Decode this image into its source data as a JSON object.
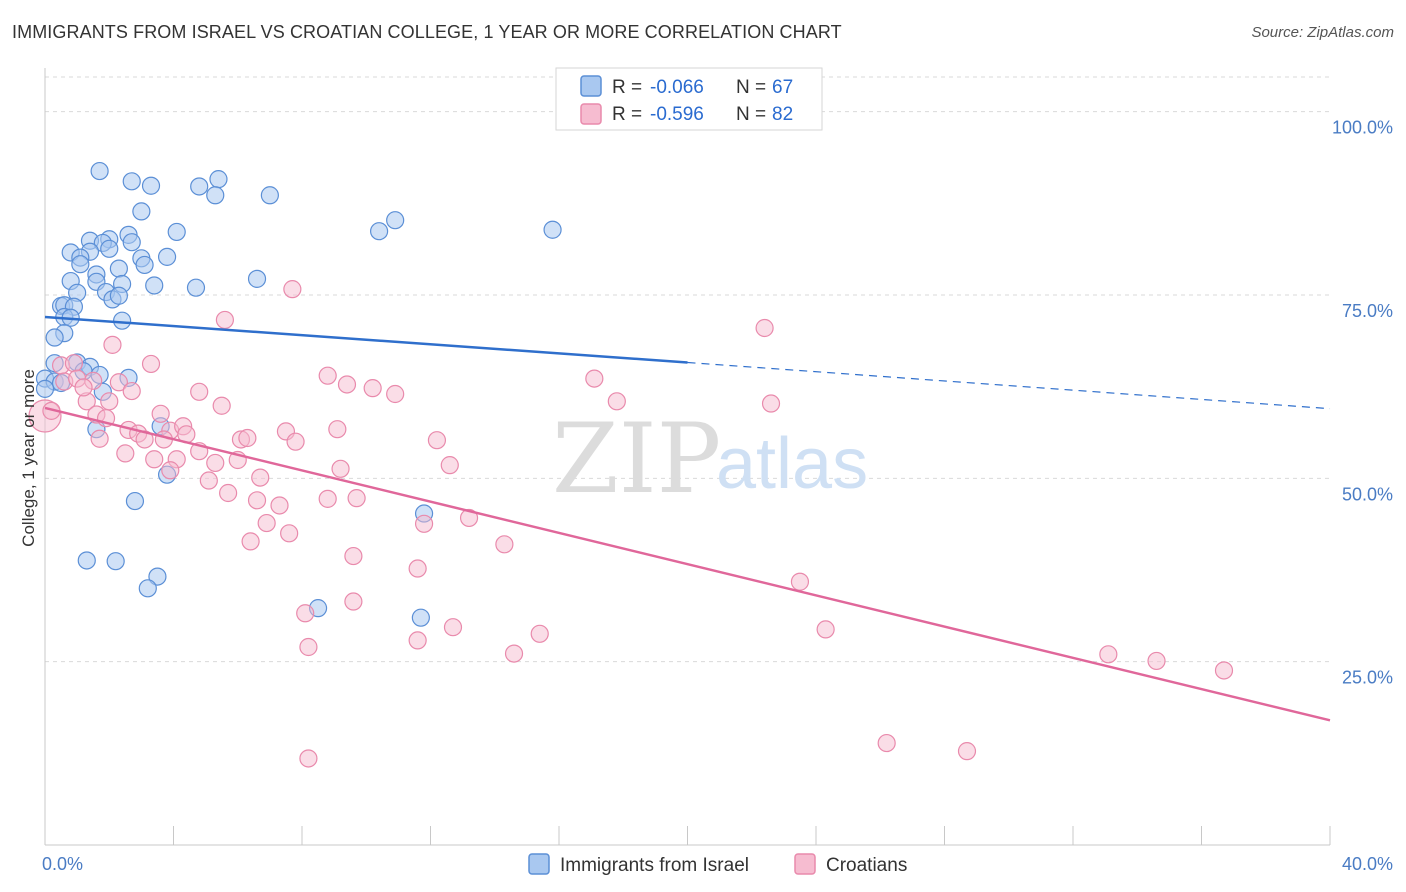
{
  "title": "IMMIGRANTS FROM ISRAEL VS CROATIAN COLLEGE, 1 YEAR OR MORE CORRELATION CHART",
  "source": "Source: ZipAtlas.com",
  "watermark": {
    "zip": "ZIP",
    "atlas": "atlas"
  },
  "colors": {
    "israel_fill": "#a9c8f0",
    "israel_stroke": "#5b8fd6",
    "israel_line": "#2f6fcc",
    "croatian_fill": "#f6bcd0",
    "croatian_stroke": "#e98aac",
    "croatian_line": "#e0679a"
  },
  "legend": {
    "rows": [
      {
        "r_label": "R =",
        "r_value": "-0.066",
        "n_label": "N =",
        "n_value": "67"
      },
      {
        "r_label": "R =",
        "r_value": "-0.596",
        "n_label": "N =",
        "n_value": "82"
      }
    ]
  },
  "chart_data": {
    "type": "scatter",
    "title": "IMMIGRANTS FROM ISRAEL VS CROATIAN COLLEGE, 1 YEAR OR MORE CORRELATION CHART",
    "xlabel": "",
    "ylabel": "College, 1 year or more",
    "xlim": [
      0,
      40
    ],
    "ylim": [
      0,
      105
    ],
    "x_tick_labels": [
      "0.0%",
      "40.0%"
    ],
    "y_ticks": [
      25,
      50,
      75,
      100
    ],
    "y_tick_labels": [
      "25.0%",
      "50.0%",
      "75.0%",
      "100.0%"
    ],
    "grid": true,
    "legend_position": "top-center",
    "series": [
      {
        "name": "Immigrants from Israel",
        "r": -0.066,
        "n": 67,
        "trend": {
          "x0": 0,
          "y0": 72.0,
          "x1": 20,
          "y1": 65.8,
          "dashed_to_x": 40,
          "dashed_to_y": 59.5
        },
        "points": [
          [
            1.7,
            91.9
          ],
          [
            2.7,
            90.5
          ],
          [
            3.3,
            89.9
          ],
          [
            4.8,
            89.8
          ],
          [
            5.4,
            90.8
          ],
          [
            5.3,
            88.6
          ],
          [
            7.0,
            88.6
          ],
          [
            3.0,
            86.4
          ],
          [
            10.9,
            85.2
          ],
          [
            10.4,
            83.7
          ],
          [
            15.8,
            83.9
          ],
          [
            4.1,
            83.6
          ],
          [
            2.6,
            83.2
          ],
          [
            1.4,
            82.4
          ],
          [
            2.0,
            82.6
          ],
          [
            1.8,
            82.1
          ],
          [
            2.7,
            82.2
          ],
          [
            0.8,
            80.8
          ],
          [
            1.4,
            80.9
          ],
          [
            2.0,
            81.3
          ],
          [
            1.1,
            80.1
          ],
          [
            3.0,
            80.0
          ],
          [
            3.8,
            80.2
          ],
          [
            1.1,
            79.2
          ],
          [
            2.3,
            78.6
          ],
          [
            3.1,
            79.1
          ],
          [
            1.6,
            77.8
          ],
          [
            6.6,
            77.2
          ],
          [
            0.8,
            76.9
          ],
          [
            1.6,
            76.8
          ],
          [
            2.4,
            76.5
          ],
          [
            3.4,
            76.3
          ],
          [
            4.7,
            76.0
          ],
          [
            1.0,
            75.3
          ],
          [
            1.9,
            75.4
          ],
          [
            2.1,
            74.4
          ],
          [
            2.3,
            74.9
          ],
          [
            0.5,
            73.5
          ],
          [
            0.6,
            73.6
          ],
          [
            0.9,
            73.4
          ],
          [
            0.6,
            72.0
          ],
          [
            0.8,
            71.9
          ],
          [
            2.4,
            71.5
          ],
          [
            0.6,
            69.8
          ],
          [
            0.3,
            69.2
          ],
          [
            0.3,
            65.7
          ],
          [
            1.0,
            65.8
          ],
          [
            1.4,
            65.2
          ],
          [
            1.2,
            64.6
          ],
          [
            0.0,
            63.6
          ],
          [
            0.3,
            63.2
          ],
          [
            0.5,
            63.0
          ],
          [
            1.8,
            61.8
          ],
          [
            1.6,
            56.7
          ],
          [
            3.6,
            57.1
          ],
          [
            3.8,
            50.5
          ],
          [
            2.8,
            46.9
          ],
          [
            11.8,
            45.2
          ],
          [
            1.3,
            38.8
          ],
          [
            2.2,
            38.7
          ],
          [
            3.5,
            36.6
          ],
          [
            3.2,
            35.0
          ],
          [
            8.5,
            32.3
          ],
          [
            11.7,
            31.0
          ],
          [
            0.0,
            62.2
          ],
          [
            2.6,
            63.7
          ],
          [
            1.7,
            64.1
          ]
        ]
      },
      {
        "name": "Croatians",
        "r": -0.596,
        "n": 82,
        "trend": {
          "x0": 0,
          "y0": 59.6,
          "x1": 40,
          "y1": 17.0
        },
        "points": [
          [
            0.0,
            58.5
          ],
          [
            0.5,
            65.4
          ],
          [
            0.6,
            63.2
          ],
          [
            0.9,
            65.7
          ],
          [
            1.0,
            63.6
          ],
          [
            1.5,
            63.3
          ],
          [
            2.1,
            68.2
          ],
          [
            2.3,
            63.1
          ],
          [
            2.7,
            61.9
          ],
          [
            3.3,
            65.6
          ],
          [
            1.3,
            60.5
          ],
          [
            1.6,
            58.7
          ],
          [
            1.9,
            58.2
          ],
          [
            1.7,
            55.4
          ],
          [
            2.6,
            56.6
          ],
          [
            2.9,
            56.1
          ],
          [
            3.1,
            55.3
          ],
          [
            3.6,
            58.8
          ],
          [
            3.9,
            56.5
          ],
          [
            4.3,
            57.1
          ],
          [
            3.7,
            55.3
          ],
          [
            3.4,
            52.6
          ],
          [
            4.1,
            52.6
          ],
          [
            2.5,
            53.4
          ],
          [
            3.9,
            51.1
          ],
          [
            4.8,
            53.7
          ],
          [
            5.3,
            52.1
          ],
          [
            5.1,
            49.7
          ],
          [
            4.8,
            61.8
          ],
          [
            5.5,
            59.9
          ],
          [
            5.6,
            71.6
          ],
          [
            6.1,
            55.3
          ],
          [
            6.3,
            55.5
          ],
          [
            6.0,
            52.5
          ],
          [
            5.7,
            48.0
          ],
          [
            6.7,
            50.1
          ],
          [
            6.6,
            47.0
          ],
          [
            7.3,
            46.3
          ],
          [
            6.9,
            43.9
          ],
          [
            7.6,
            42.5
          ],
          [
            6.4,
            41.4
          ],
          [
            7.5,
            56.4
          ],
          [
            7.8,
            55.0
          ],
          [
            8.8,
            64.0
          ],
          [
            9.1,
            56.7
          ],
          [
            9.2,
            51.3
          ],
          [
            8.8,
            47.2
          ],
          [
            9.7,
            47.3
          ],
          [
            9.4,
            62.8
          ],
          [
            10.2,
            62.3
          ],
          [
            10.9,
            61.5
          ],
          [
            9.6,
            39.4
          ],
          [
            9.6,
            33.2
          ],
          [
            8.1,
            31.6
          ],
          [
            8.2,
            27.0
          ],
          [
            8.2,
            11.8
          ],
          [
            7.7,
            75.8
          ],
          [
            12.2,
            55.2
          ],
          [
            12.6,
            51.8
          ],
          [
            11.8,
            43.8
          ],
          [
            13.2,
            44.6
          ],
          [
            11.6,
            37.7
          ],
          [
            14.3,
            41.0
          ],
          [
            11.6,
            27.9
          ],
          [
            12.7,
            29.7
          ],
          [
            14.6,
            26.1
          ],
          [
            15.4,
            28.8
          ],
          [
            17.1,
            63.6
          ],
          [
            17.8,
            60.5
          ],
          [
            22.4,
            70.5
          ],
          [
            22.6,
            60.2
          ],
          [
            23.5,
            35.9
          ],
          [
            24.3,
            29.4
          ],
          [
            26.2,
            13.9
          ],
          [
            28.7,
            12.8
          ],
          [
            33.1,
            26.0
          ],
          [
            34.6,
            25.1
          ],
          [
            36.7,
            23.8
          ],
          [
            2.0,
            60.5
          ],
          [
            4.4,
            56.0
          ],
          [
            0.2,
            59.2
          ],
          [
            1.2,
            62.4
          ]
        ]
      }
    ]
  },
  "bottom_legend": [
    {
      "label": "Immigrants from Israel"
    },
    {
      "label": "Croatians"
    }
  ]
}
